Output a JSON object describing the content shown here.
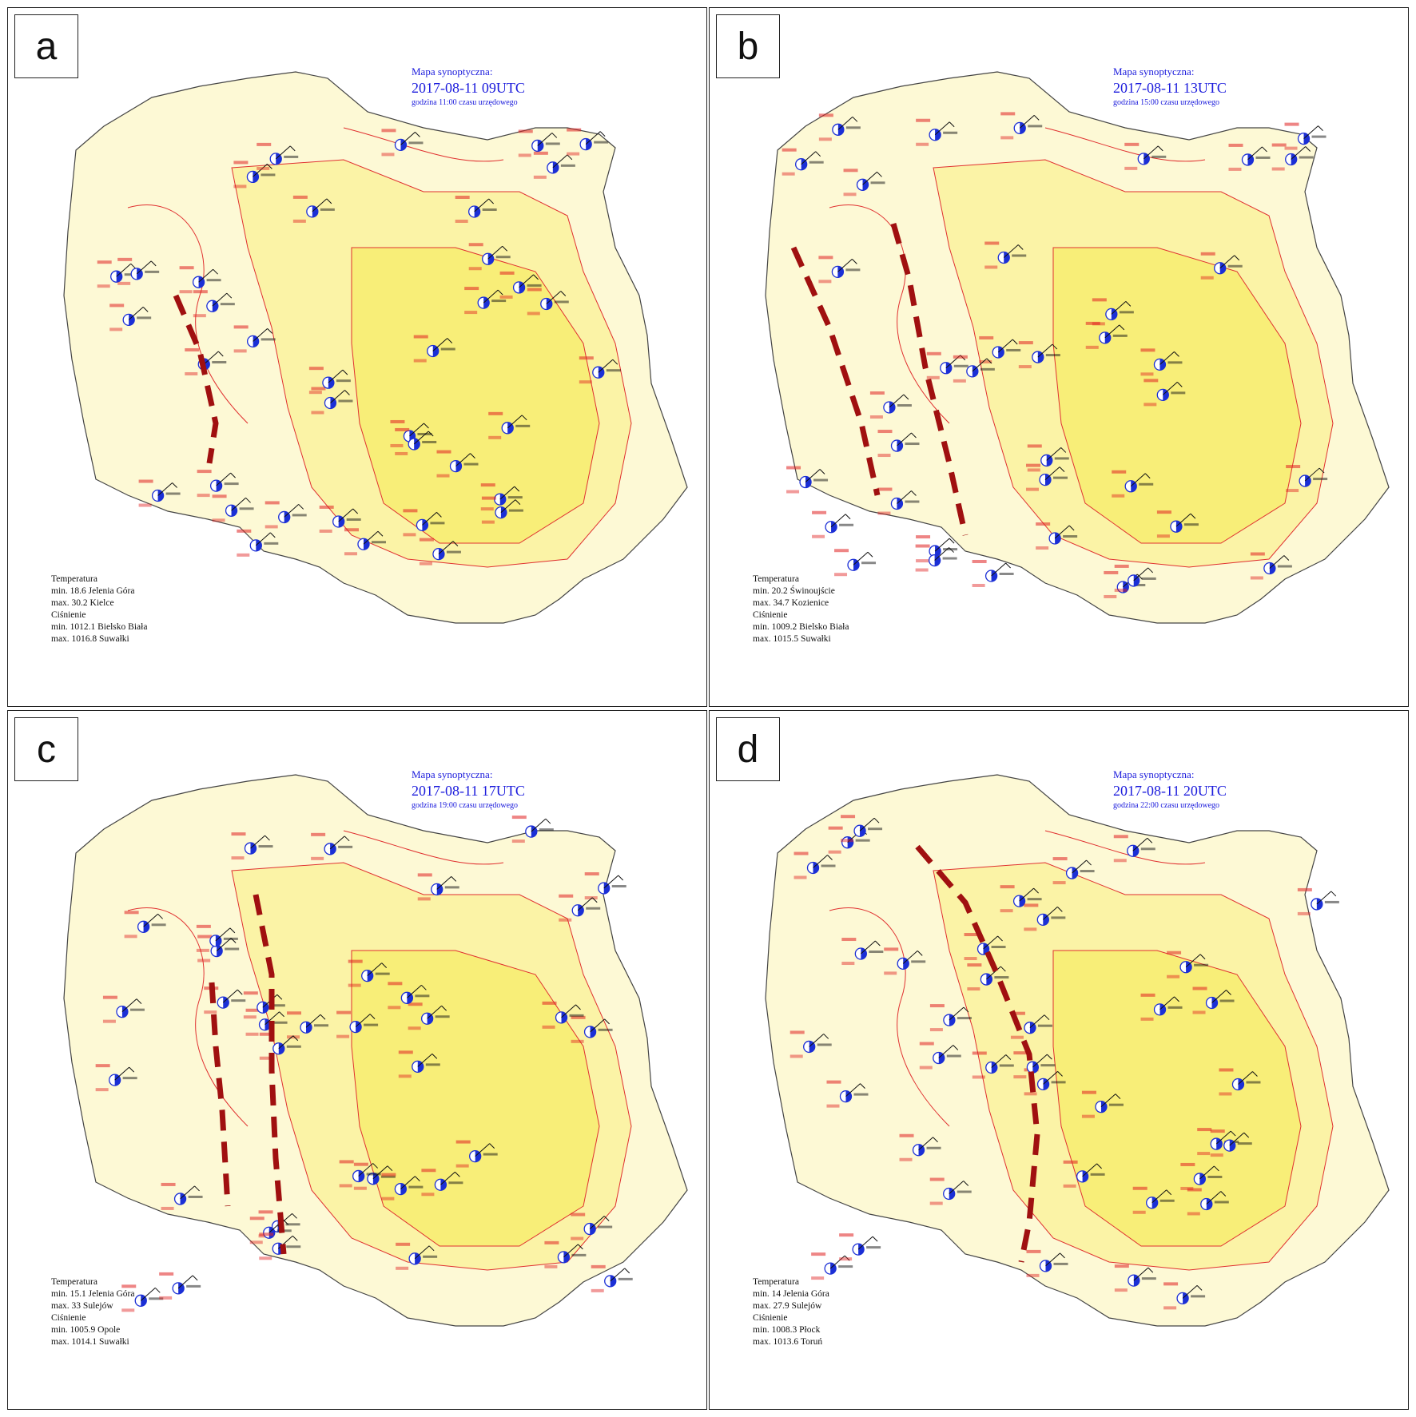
{
  "panels": [
    {
      "letter": "a",
      "title": "Mapa synoptyczna:",
      "datetime": "2017-08-11 09UTC",
      "local": "godzina 11:00 czasu urzędowego",
      "stats": [
        "Temperatura",
        "min. 18.6 Jelenia Góra",
        "max. 30.2 Kielce",
        "Ciśnienie",
        "min. 1012.1 Bielsko Biała",
        "max. 1016.8 Suwałki"
      ]
    },
    {
      "letter": "b",
      "title": "Mapa synoptyczna:",
      "datetime": "2017-08-11 13UTC",
      "local": "godzina 15:00 czasu urzędowego",
      "stats": [
        "Temperatura",
        "min. 20.2 Świnoujście",
        "max. 34.7 Kozienice",
        "Ciśnienie",
        "min. 1009.2 Bielsko Biała",
        "max. 1015.5 Suwałki"
      ]
    },
    {
      "letter": "c",
      "title": "Mapa synoptyczna:",
      "datetime": "2017-08-11 17UTC",
      "local": "godzina 19:00 czasu urzędowego",
      "stats": [
        "Temperatura",
        "min. 15.1 Jelenia Góra",
        "max. 33 Sulejów",
        "Ciśnienie",
        "min. 1005.9 Opole",
        "max. 1014.1 Suwałki"
      ]
    },
    {
      "letter": "d",
      "title": "Mapa synoptyczna:",
      "datetime": "2017-08-11 20UTC",
      "local": "godzina 22:00 czasu urzędowego",
      "stats": [
        "Temperatura",
        "min. 14 Jelenia Góra",
        "max. 27.9 Sulejów",
        "Ciśnienie",
        "min. 1008.3 Płock",
        "max. 1013.6 Toruń"
      ]
    }
  ],
  "colors": {
    "light_fill": "#fdf9d5",
    "mid_fill": "#fbf3a6",
    "hot_fill": "#f8ee78",
    "isotherm": "#e03030",
    "front_line": "#a01010",
    "station_text_red": "#e02020",
    "station_text_black": "#111111",
    "station_blue": "#1b2fd6",
    "heading_blue": "#1a1adc"
  }
}
